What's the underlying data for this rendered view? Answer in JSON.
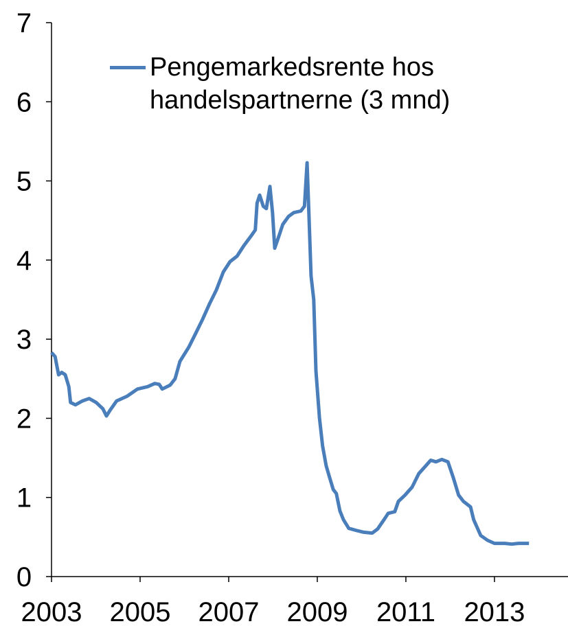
{
  "chart_data": {
    "type": "line",
    "x": [
      2003.0,
      2003.08,
      2003.16,
      2003.23,
      2003.31,
      2003.39,
      2003.43,
      2003.54,
      2003.7,
      2003.85,
      2004.01,
      2004.16,
      2004.24,
      2004.32,
      2004.47,
      2004.71,
      2004.94,
      2005.17,
      2005.33,
      2005.43,
      2005.5,
      2005.68,
      2005.79,
      2005.9,
      2006.1,
      2006.26,
      2006.41,
      2006.57,
      2006.72,
      2006.88,
      2007.03,
      2007.19,
      2007.34,
      2007.5,
      2007.6,
      2007.64,
      2007.7,
      2007.78,
      2007.85,
      2007.93,
      2007.99,
      2008.04,
      2008.12,
      2008.22,
      2008.35,
      2008.47,
      2008.63,
      2008.71,
      2008.77,
      2008.81,
      2008.86,
      2008.92,
      2008.97,
      2009.05,
      2009.12,
      2009.2,
      2009.28,
      2009.36,
      2009.43,
      2009.51,
      2009.59,
      2009.71,
      2009.9,
      2010.05,
      2010.24,
      2010.36,
      2010.52,
      2010.6,
      2010.75,
      2010.83,
      2010.98,
      2011.14,
      2011.29,
      2011.45,
      2011.56,
      2011.68,
      2011.81,
      2011.95,
      2012.07,
      2012.19,
      2012.3,
      2012.46,
      2012.53,
      2012.69,
      2012.84,
      2013.0,
      2013.23,
      2013.39,
      2013.54,
      2013.78
    ],
    "series": [
      {
        "name": "Pengemarkedsrente hos handelspartnerne (3 mnd)",
        "color": "#4a7ebb",
        "values": [
          2.83,
          2.78,
          2.55,
          2.58,
          2.55,
          2.4,
          2.2,
          2.17,
          2.22,
          2.25,
          2.2,
          2.12,
          2.03,
          2.1,
          2.22,
          2.28,
          2.37,
          2.4,
          2.44,
          2.43,
          2.37,
          2.42,
          2.5,
          2.72,
          2.9,
          3.08,
          3.25,
          3.45,
          3.62,
          3.85,
          3.98,
          4.05,
          4.18,
          4.3,
          4.38,
          4.72,
          4.82,
          4.68,
          4.65,
          4.93,
          4.6,
          4.15,
          4.28,
          4.45,
          4.55,
          4.6,
          4.62,
          4.68,
          5.23,
          4.6,
          3.8,
          3.5,
          2.6,
          2.0,
          1.65,
          1.4,
          1.25,
          1.1,
          1.05,
          0.83,
          0.72,
          0.61,
          0.58,
          0.56,
          0.55,
          0.6,
          0.73,
          0.8,
          0.82,
          0.95,
          1.03,
          1.13,
          1.3,
          1.4,
          1.47,
          1.45,
          1.48,
          1.45,
          1.25,
          1.03,
          0.95,
          0.88,
          0.72,
          0.52,
          0.46,
          0.42,
          0.42,
          0.41,
          0.42,
          0.42
        ]
      }
    ],
    "xlim": [
      2003,
      2014.66
    ],
    "xticks": [
      2003,
      2005,
      2007,
      2009,
      2011,
      2013
    ],
    "ylim": [
      0,
      7
    ],
    "yticks": [
      0,
      1,
      2,
      3,
      4,
      5,
      6,
      7
    ],
    "grid": false,
    "legend": "top-left"
  }
}
